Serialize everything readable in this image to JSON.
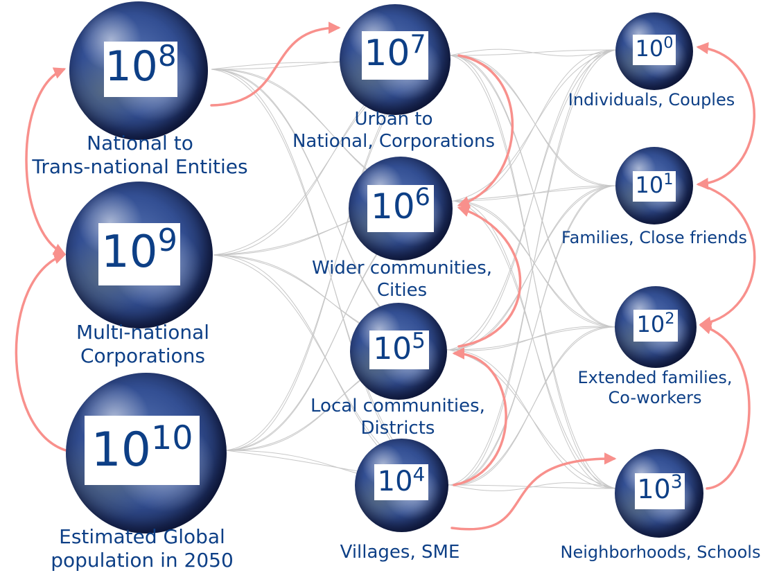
{
  "colors": {
    "text": "#0d3f86",
    "arrow": "#f8908c",
    "link": "#c7c7c7"
  },
  "icon": "earth-globe-icon",
  "nodes": {
    "n8": {
      "base": "10",
      "exp": "8",
      "caption": [
        "National to",
        "Trans-national Entities"
      ]
    },
    "n9": {
      "base": "10",
      "exp": "9",
      "caption": [
        "Multi-national",
        "Corporations"
      ]
    },
    "n10": {
      "base": "10",
      "exp": "10",
      "caption": [
        "Estimated Global",
        "population in 2050"
      ]
    },
    "n7": {
      "base": "10",
      "exp": "7",
      "caption": [
        "Urban to",
        "National, Corporations"
      ]
    },
    "n6": {
      "base": "10",
      "exp": "6",
      "caption": [
        "Wider communities,",
        "Cities"
      ]
    },
    "n5": {
      "base": "10",
      "exp": "5",
      "caption": [
        "Local communities,",
        "Districts"
      ]
    },
    "n4": {
      "base": "10",
      "exp": "4",
      "caption": [
        "Villages, SME"
      ]
    },
    "n0": {
      "base": "10",
      "exp": "0",
      "caption": [
        "Individuals, Couples"
      ]
    },
    "n1": {
      "base": "10",
      "exp": "1",
      "caption": [
        "Families, Close friends"
      ]
    },
    "n2": {
      "base": "10",
      "exp": "2",
      "caption": [
        "Extended families,",
        "Co-workers"
      ]
    },
    "n3": {
      "base": "10",
      "exp": "3",
      "caption": [
        "Neighborhoods, Schools"
      ]
    }
  }
}
